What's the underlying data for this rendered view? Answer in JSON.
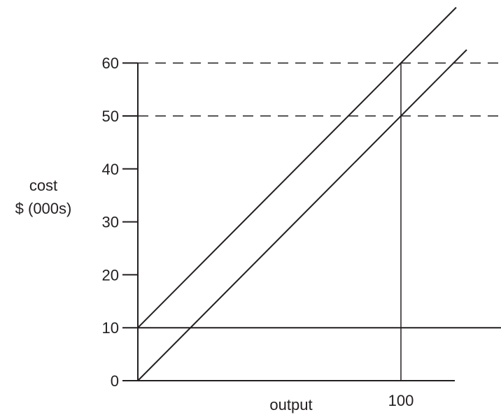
{
  "chart_data": {
    "type": "line",
    "ylabel": [
      "cost",
      "$ (000s)"
    ],
    "xlabel": "output",
    "y_ticks": [
      0,
      10,
      20,
      30,
      40,
      50,
      60
    ],
    "x_ticks": [
      100
    ],
    "ylim": [
      0,
      60
    ],
    "series": [
      {
        "x": [
          0,
          100
        ],
        "y": [
          10,
          60
        ]
      },
      {
        "x": [
          0,
          100
        ],
        "y": [
          0,
          50
        ]
      },
      {
        "x": [
          0,
          100
        ],
        "y": [
          10,
          10
        ]
      }
    ],
    "reference_lines": [
      {
        "style": "dashed",
        "y": 60
      },
      {
        "style": "dashed",
        "y": 50
      },
      {
        "style": "solid",
        "x": 100
      }
    ],
    "grid": false,
    "legend": "none"
  }
}
